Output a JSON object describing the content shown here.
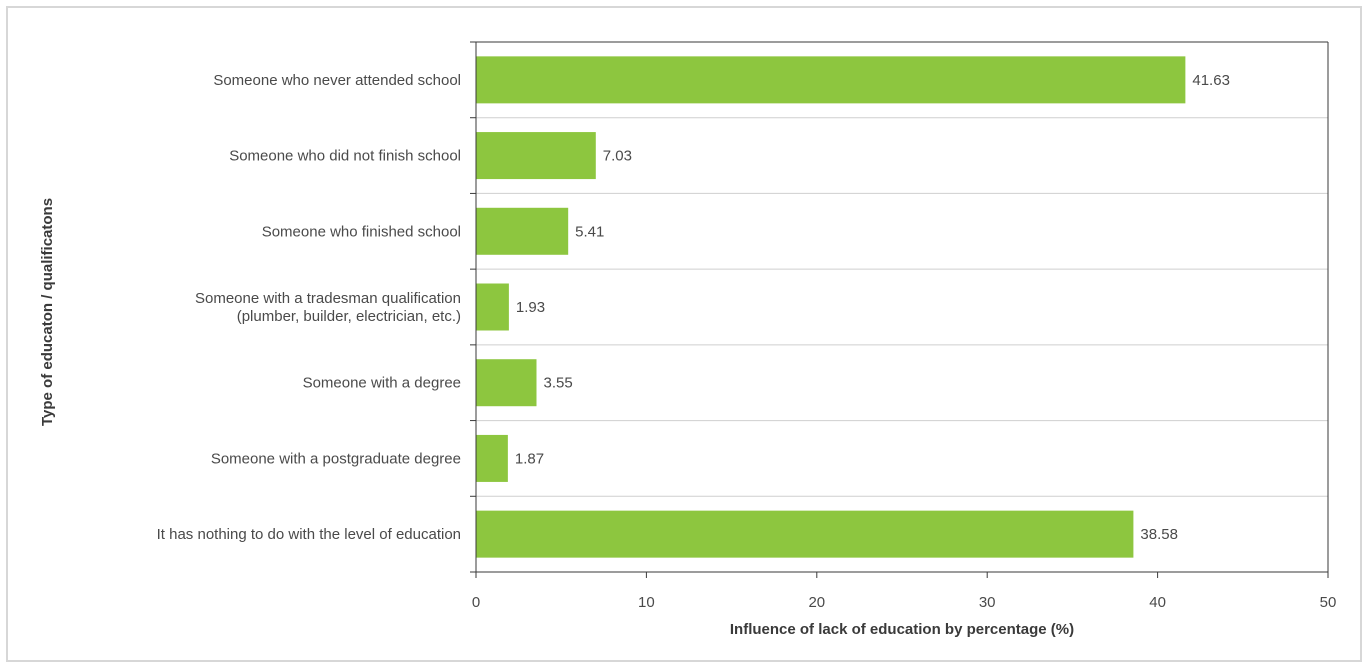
{
  "chart_data": {
    "type": "bar",
    "orientation": "horizontal",
    "categories": [
      [
        "Someone who never attended school"
      ],
      [
        "Someone who did not finish school"
      ],
      [
        "Someone who finished school"
      ],
      [
        "Someone with a tradesman qualification",
        "(plumber, builder, electrician, etc.)"
      ],
      [
        "Someone with a degree"
      ],
      [
        "Someone with a postgraduate degree"
      ],
      [
        "It has nothing to do with the level of education"
      ]
    ],
    "values": [
      41.63,
      7.03,
      5.41,
      1.93,
      3.55,
      1.87,
      38.58
    ],
    "value_labels": [
      "41.63",
      "7.03",
      "5.41",
      "1.93",
      "3.55",
      "1.87",
      "38.58"
    ],
    "xlabel": "Influence of lack of education by percentage (%)",
    "ylabel": "Type of educaton / qualificatons",
    "xlim": [
      0,
      50
    ],
    "xticks": [
      0,
      10,
      20,
      30,
      40,
      50
    ],
    "grid": "horizontal",
    "colors": {
      "bar": "#8dc63f",
      "axis": "#3a3a3a",
      "grid": "#cfcfcf",
      "frame": "#d7d7d7"
    }
  }
}
